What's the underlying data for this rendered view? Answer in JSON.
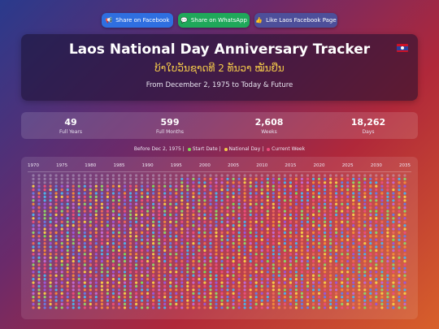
{
  "share": {
    "facebook": {
      "icon": "megaphone-icon",
      "glyph": "📢",
      "label": "Share on Facebook"
    },
    "whatsapp": {
      "icon": "chat-icon",
      "glyph": "💬",
      "label": "Share on WhatsApp"
    },
    "like": {
      "icon": "thumbs-up-icon",
      "glyph": "👍",
      "label": "Like Laos Facebook Page"
    }
  },
  "hero": {
    "title": "Laos National Day Anniversary Tracker",
    "lao_title": "ບ້າໃບວັນຊາດທີ 2 ທັນວາ ໝັນຢືນ",
    "subtitle": "From December 2, 1975 to Today & Future"
  },
  "stats": [
    {
      "value": "49",
      "label": "Full Years"
    },
    {
      "value": "599",
      "label": "Full Months"
    },
    {
      "value": "2,608",
      "label": "Weeks"
    },
    {
      "value": "18,262",
      "label": "Days"
    }
  ],
  "legend": {
    "before": "Before Dec 2, 1975",
    "sep": "|",
    "start": "Start Date",
    "national": "National Day",
    "current": "Current Week",
    "colors": {
      "start": "#7ed957",
      "national": "#f3c94a",
      "current": "#e84a7a"
    }
  },
  "axis": {
    "years": [
      "1970",
      "1975",
      "1980",
      "1985",
      "1990",
      "1995",
      "2000",
      "2005",
      "2010",
      "2015",
      "2020",
      "2025",
      "2030",
      "2035"
    ]
  },
  "palette": [
    "#9b59d6",
    "#e8507a",
    "#f08a3c",
    "#f3c94a",
    "#8fd16a",
    "#4fb0e8",
    "#c06ad0",
    "#e86a5a",
    "#6a7be0"
  ]
}
